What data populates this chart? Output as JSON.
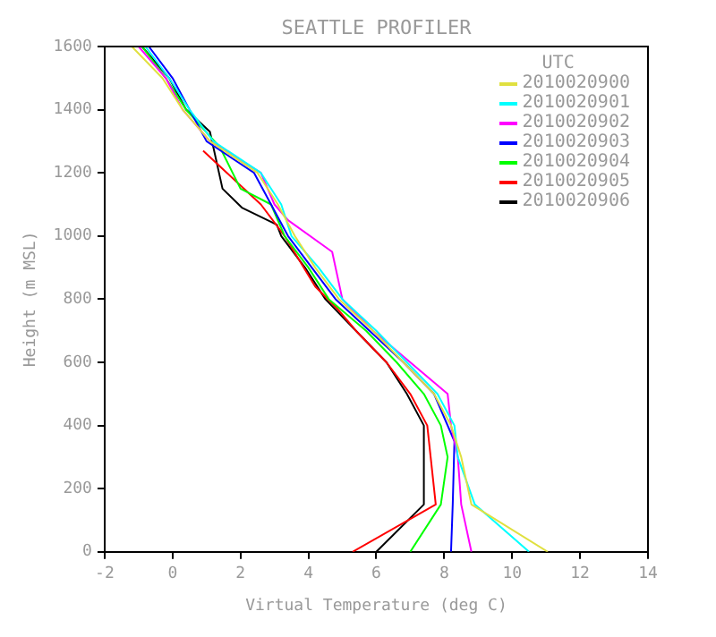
{
  "chart_data": {
    "type": "line",
    "title": "SEATTLE PROFILER",
    "xlabel": "Virtual Temperature (deg C)",
    "ylabel": "Height (m MSL)",
    "legend_title": "UTC",
    "legend": "top right",
    "grid": false,
    "marker": "none",
    "line_style": "solid",
    "xlim": [
      -2,
      14
    ],
    "xticks": [
      -2,
      0,
      2,
      4,
      6,
      8,
      10,
      12,
      14
    ],
    "ylim": [
      0,
      1600
    ],
    "yticks": [
      0,
      200,
      400,
      600,
      800,
      1000,
      1200,
      1400,
      1600
    ],
    "series": [
      {
        "name": "2010020900",
        "color": "#e0e040",
        "x": [
          11.05,
          8.8,
          8.5,
          8.2,
          7.7,
          6.8,
          5.9,
          4.9,
          4.2,
          3.6,
          3.1,
          2.5,
          1.1,
          0.3,
          -0.3,
          -1.2
        ],
        "values": [
          0,
          150,
          300,
          400,
          500,
          600,
          700,
          800,
          900,
          1000,
          1100,
          1200,
          1300,
          1400,
          1500,
          1600
        ]
      },
      {
        "name": "2010020901",
        "color": "#00ffff",
        "x": [
          10.5,
          8.9,
          8.4,
          8.3,
          7.8,
          6.9,
          6.0,
          5.0,
          4.3,
          3.5,
          3.2,
          2.6,
          1.2,
          0.5,
          -0.1,
          -0.8
        ],
        "values": [
          0,
          150,
          300,
          400,
          500,
          600,
          700,
          800,
          900,
          1000,
          1100,
          1200,
          1300,
          1400,
          1500,
          1600
        ]
      },
      {
        "name": "2010020902",
        "color": "#ff00ff",
        "x": [
          8.8,
          8.5,
          8.4,
          8.2,
          8.1,
          7.0,
          5.9,
          5.0,
          4.7,
          3.4,
          3.0,
          2.6,
          1.1,
          0.3,
          -0.2,
          -1.0
        ],
        "values": [
          0,
          150,
          300,
          400,
          500,
          600,
          700,
          800,
          950,
          1050,
          1100,
          1200,
          1300,
          1400,
          1500,
          1600
        ]
      },
      {
        "name": "2010020903",
        "color": "#0000ff",
        "x": [
          8.2,
          8.25,
          8.3,
          7.7,
          6.8,
          5.8,
          4.8,
          4.1,
          3.4,
          2.9,
          2.4,
          1.0,
          0.5,
          0.0,
          -0.7
        ],
        "values": [
          0,
          150,
          350,
          500,
          600,
          700,
          800,
          900,
          1000,
          1100,
          1200,
          1300,
          1400,
          1500,
          1600
        ]
      },
      {
        "name": "2010020904",
        "color": "#00ff00",
        "x": [
          7.0,
          7.9,
          8.1,
          7.9,
          7.4,
          6.6,
          5.7,
          4.6,
          4.0,
          3.3,
          2.9,
          2.0,
          1.4,
          0.4,
          -0.2,
          -0.9
        ],
        "values": [
          0,
          150,
          300,
          400,
          500,
          600,
          700,
          800,
          900,
          1000,
          1100,
          1150,
          1280,
          1400,
          1500,
          1600
        ]
      },
      {
        "name": "2010020905",
        "color": "#ff0000",
        "x": [
          5.3,
          7.75,
          7.6,
          7.5,
          7.0,
          6.3,
          5.4,
          4.85,
          4.2,
          3.3,
          2.6,
          1.6,
          0.9
        ],
        "values": [
          0,
          150,
          300,
          400,
          500,
          600,
          700,
          770,
          840,
          1000,
          1100,
          1200,
          1270
        ]
      },
      {
        "name": "2010020906",
        "color": "#000000",
        "x": [
          6.0,
          7.4,
          7.4,
          6.9,
          6.3,
          5.4,
          4.5,
          3.9,
          3.2,
          3.07,
          2.04,
          1.47,
          1.1,
          0.4,
          -0.1,
          -0.9
        ],
        "values": [
          0,
          150,
          400,
          500,
          600,
          700,
          800,
          900,
          1000,
          1036,
          1090,
          1150,
          1330,
          1400,
          1500,
          1600
        ]
      }
    ]
  }
}
